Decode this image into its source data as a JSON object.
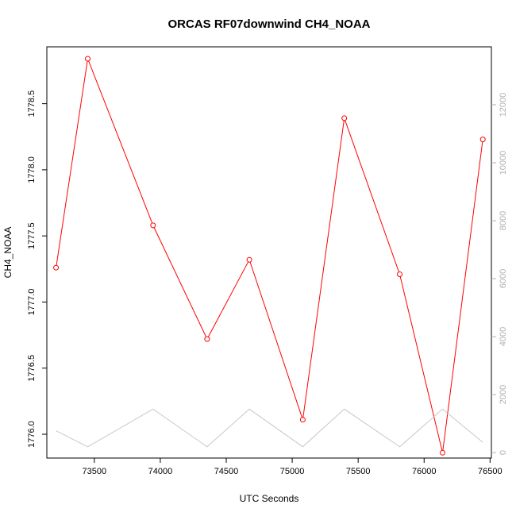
{
  "chart_data": {
    "type": "line",
    "title": "ORCAS RF07downwind CH4_NOAA",
    "xlabel": "UTC Seconds",
    "ylabel": "CH4_NOAA",
    "xlim": [
      73140,
      76510
    ],
    "ylim": [
      1775.82,
      1778.93
    ],
    "x_ticks": [
      "73500",
      "74000",
      "74500",
      "75000",
      "75500",
      "76000",
      "76500"
    ],
    "y_ticks": [
      "1776.0",
      "1776.5",
      "1777.0",
      "1777.5",
      "1778.0",
      "1778.5"
    ],
    "y2lim": [
      -190,
      14000
    ],
    "y2_ticks": [
      "0",
      "2000",
      "4000",
      "6000",
      "8000",
      "10000",
      "12000"
    ],
    "grid": false,
    "series": [
      {
        "color": "#ff0000",
        "marker": "open-circle",
        "axis": "left",
        "x": [
          73210,
          73450,
          73945,
          74355,
          74675,
          75080,
          75395,
          75815,
          76140,
          76445
        ],
        "y": [
          1777.26,
          1778.84,
          1777.58,
          1776.72,
          1777.32,
          1776.11,
          1778.39,
          1777.21,
          1775.86,
          1778.23
        ]
      },
      {
        "color": "#c8c8c8",
        "marker": "none",
        "axis": "right",
        "x": [
          73210,
          73450,
          73945,
          74355,
          74675,
          75080,
          75395,
          75815,
          76140,
          76445
        ],
        "y": [
          750,
          200,
          1500,
          200,
          1500,
          200,
          1500,
          200,
          1500,
          350
        ]
      }
    ]
  }
}
